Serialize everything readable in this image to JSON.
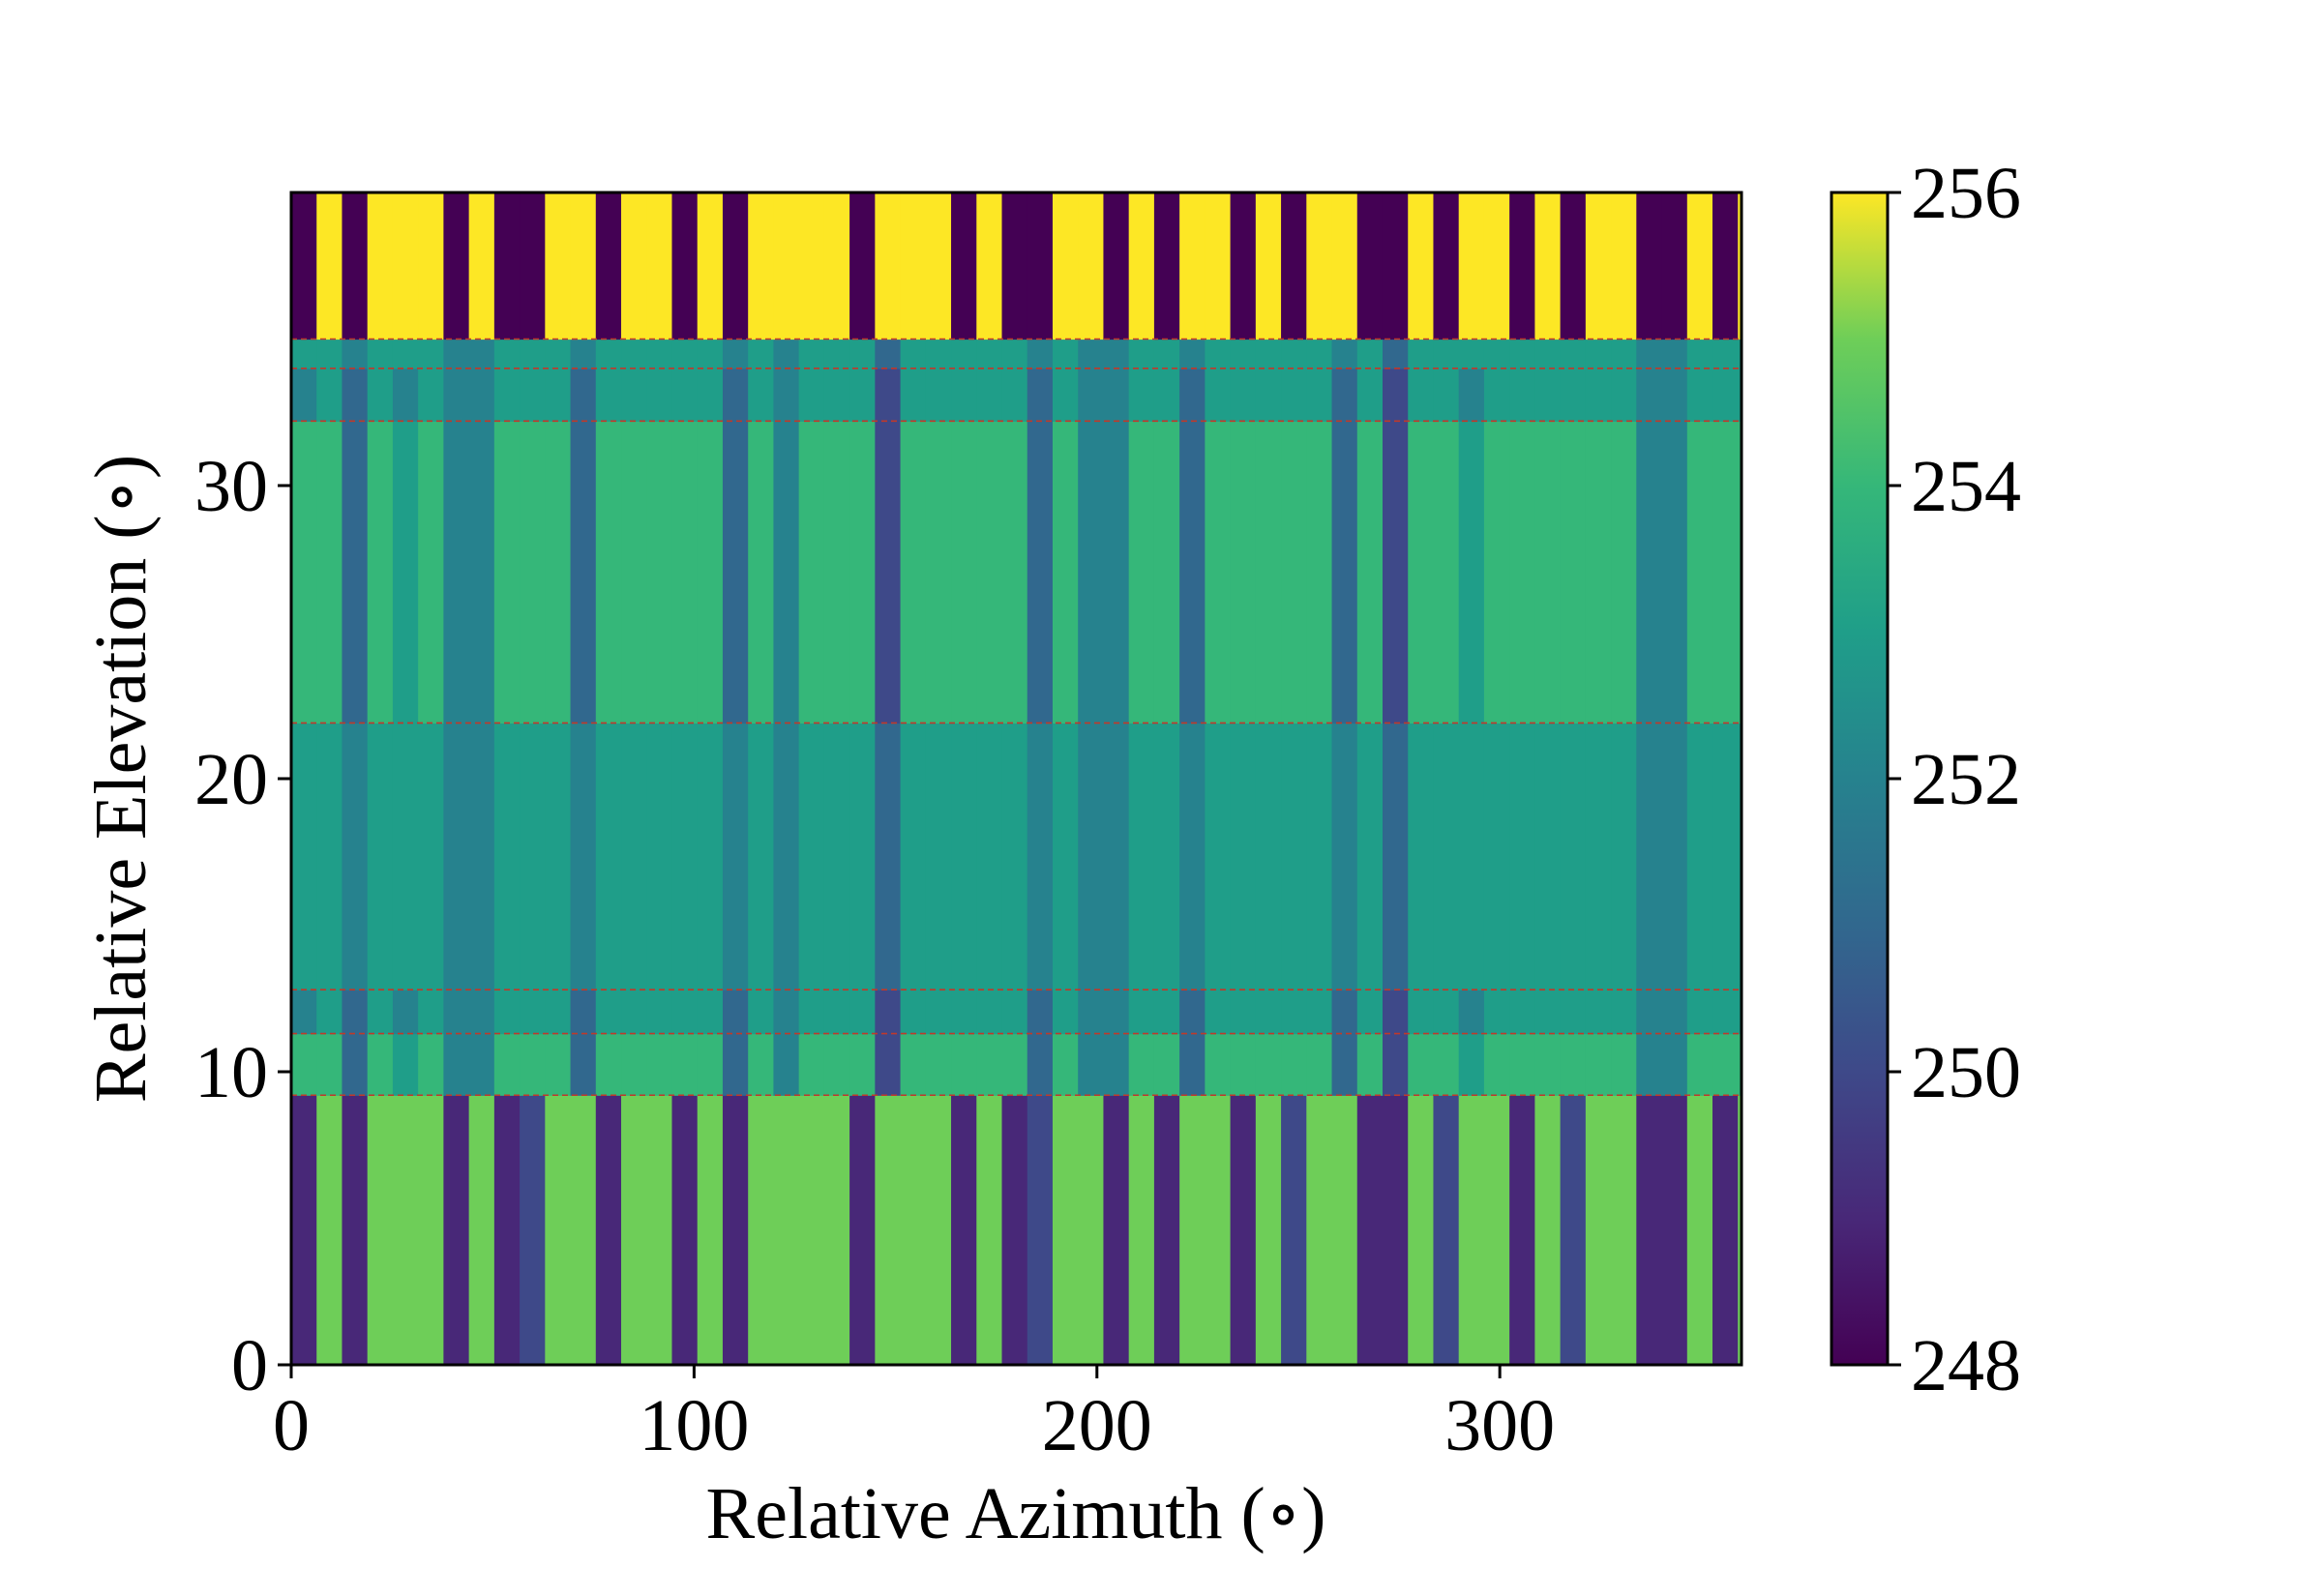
{
  "chart_data": {
    "type": "heatmap",
    "title": "",
    "xlabel": "Relative Azimuth (∘)",
    "ylabel": "Relative Elevation (∘)",
    "xlim": [
      0,
      360
    ],
    "ylim": [
      0,
      40
    ],
    "xticks": [
      0,
      100,
      200,
      300
    ],
    "xtick_labels": [
      "0",
      "100",
      "200",
      "300"
    ],
    "yticks": [
      0,
      10,
      20,
      30
    ],
    "ytick_labels": [
      "0",
      "10",
      "20",
      "30"
    ],
    "colorscale": "viridis",
    "colorbar": {
      "range": [
        248,
        256
      ],
      "ticks": [
        248,
        250,
        252,
        254,
        256
      ],
      "tick_labels": [
        "248",
        "250",
        "252",
        "254",
        "256"
      ]
    },
    "grid": false,
    "band_edges_deg": [
      0,
      9.2,
      11.3,
      12.8,
      21.9,
      32.2,
      34.0,
      35.0,
      40.0
    ],
    "band_boundary_lines": [
      9.2,
      11.3,
      12.8,
      21.9,
      32.2,
      34.0,
      35.0
    ],
    "column_width_deg": 6.3,
    "band_values": {
      "low_band": [
        249,
        255,
        249,
        255,
        255,
        255,
        249,
        255,
        249,
        250,
        255,
        255,
        249,
        255,
        255,
        249,
        255,
        249,
        255,
        255,
        255,
        255,
        249,
        255,
        255,
        255,
        249,
        255,
        249,
        250,
        255,
        255,
        249,
        255,
        249,
        255,
        255,
        249,
        255,
        250,
        255,
        255,
        249,
        249,
        255,
        250,
        255,
        255,
        249,
        255,
        250,
        255,
        255,
        249,
        249,
        255,
        249,
        255,
        255,
        249,
        255,
        255,
        249,
        255,
        249,
        255,
        255,
        249,
        255,
        255,
        255,
        255,
        249,
        255,
        249,
        255,
        255,
        249,
        255,
        255
      ],
      "top_band": [
        248,
        256,
        248,
        256,
        256,
        256,
        248,
        256,
        248,
        248,
        256,
        256,
        248,
        256,
        256,
        248,
        256,
        248,
        256,
        256,
        256,
        256,
        248,
        256,
        256,
        256,
        248,
        256,
        248,
        248,
        256,
        256,
        248,
        256,
        248,
        256,
        256,
        248,
        256,
        248,
        256,
        256,
        248,
        248,
        256,
        248,
        256,
        256,
        248,
        256,
        248,
        256,
        256,
        248,
        248,
        256,
        248,
        256,
        256,
        248,
        256,
        256,
        248,
        256,
        248,
        256,
        256,
        248,
        256,
        256,
        256,
        256,
        248,
        256,
        248,
        256,
        256,
        248,
        256,
        256
      ],
      "mid_band_254": [
        254,
        254,
        251,
        254,
        253,
        254,
        252,
        252,
        254,
        254,
        254,
        251,
        254,
        254,
        254,
        254,
        254,
        251,
        254,
        252,
        254,
        254,
        254,
        250,
        254,
        254,
        254,
        254,
        254,
        251,
        254,
        252,
        252,
        254,
        254,
        251,
        254,
        254,
        254,
        254,
        254,
        251,
        254,
        250,
        254,
        254,
        253,
        254,
        254,
        254,
        254,
        254,
        254,
        252,
        252,
        254,
        254,
        254,
        254,
        251,
        254,
        254,
        254,
        254,
        254,
        250,
        254,
        252,
        254,
        254,
        254,
        251,
        254,
        254,
        254,
        254,
        251,
        254,
        250,
        254
      ],
      "mid_band_253": [
        253,
        253,
        252,
        253,
        253,
        253,
        252,
        252,
        253,
        253,
        253,
        252,
        253,
        253,
        253,
        253,
        253,
        252,
        253,
        252,
        253,
        253,
        253,
        251,
        253,
        253,
        253,
        253,
        253,
        252,
        253,
        252,
        252,
        253,
        253,
        252,
        253,
        253,
        253,
        253,
        253,
        252,
        253,
        251,
        253,
        253,
        253,
        253,
        253,
        253,
        253,
        253,
        253,
        252,
        252,
        253,
        253,
        253,
        253,
        252,
        253,
        253,
        253,
        253,
        253,
        251,
        253,
        252,
        253,
        253,
        253,
        252,
        253,
        253,
        253,
        253,
        252,
        253,
        251,
        253
      ],
      "thin_band_252": [
        252,
        253,
        251,
        253,
        252,
        253,
        252,
        252,
        253,
        253,
        253,
        251,
        253,
        253,
        253,
        253,
        253,
        251,
        253,
        252,
        253,
        253,
        253,
        250,
        253,
        253,
        253,
        253,
        253,
        251,
        253,
        252,
        252,
        253,
        253,
        251,
        253,
        253,
        253,
        253,
        253,
        251,
        253,
        250,
        253,
        253,
        252,
        253,
        253,
        253,
        253,
        253,
        253,
        252,
        252,
        253,
        253,
        253,
        253,
        251,
        253,
        253,
        253,
        253,
        253,
        250,
        253,
        252,
        253,
        253,
        253,
        251,
        253,
        253,
        253,
        253,
        251,
        253,
        250,
        253
      ]
    }
  }
}
